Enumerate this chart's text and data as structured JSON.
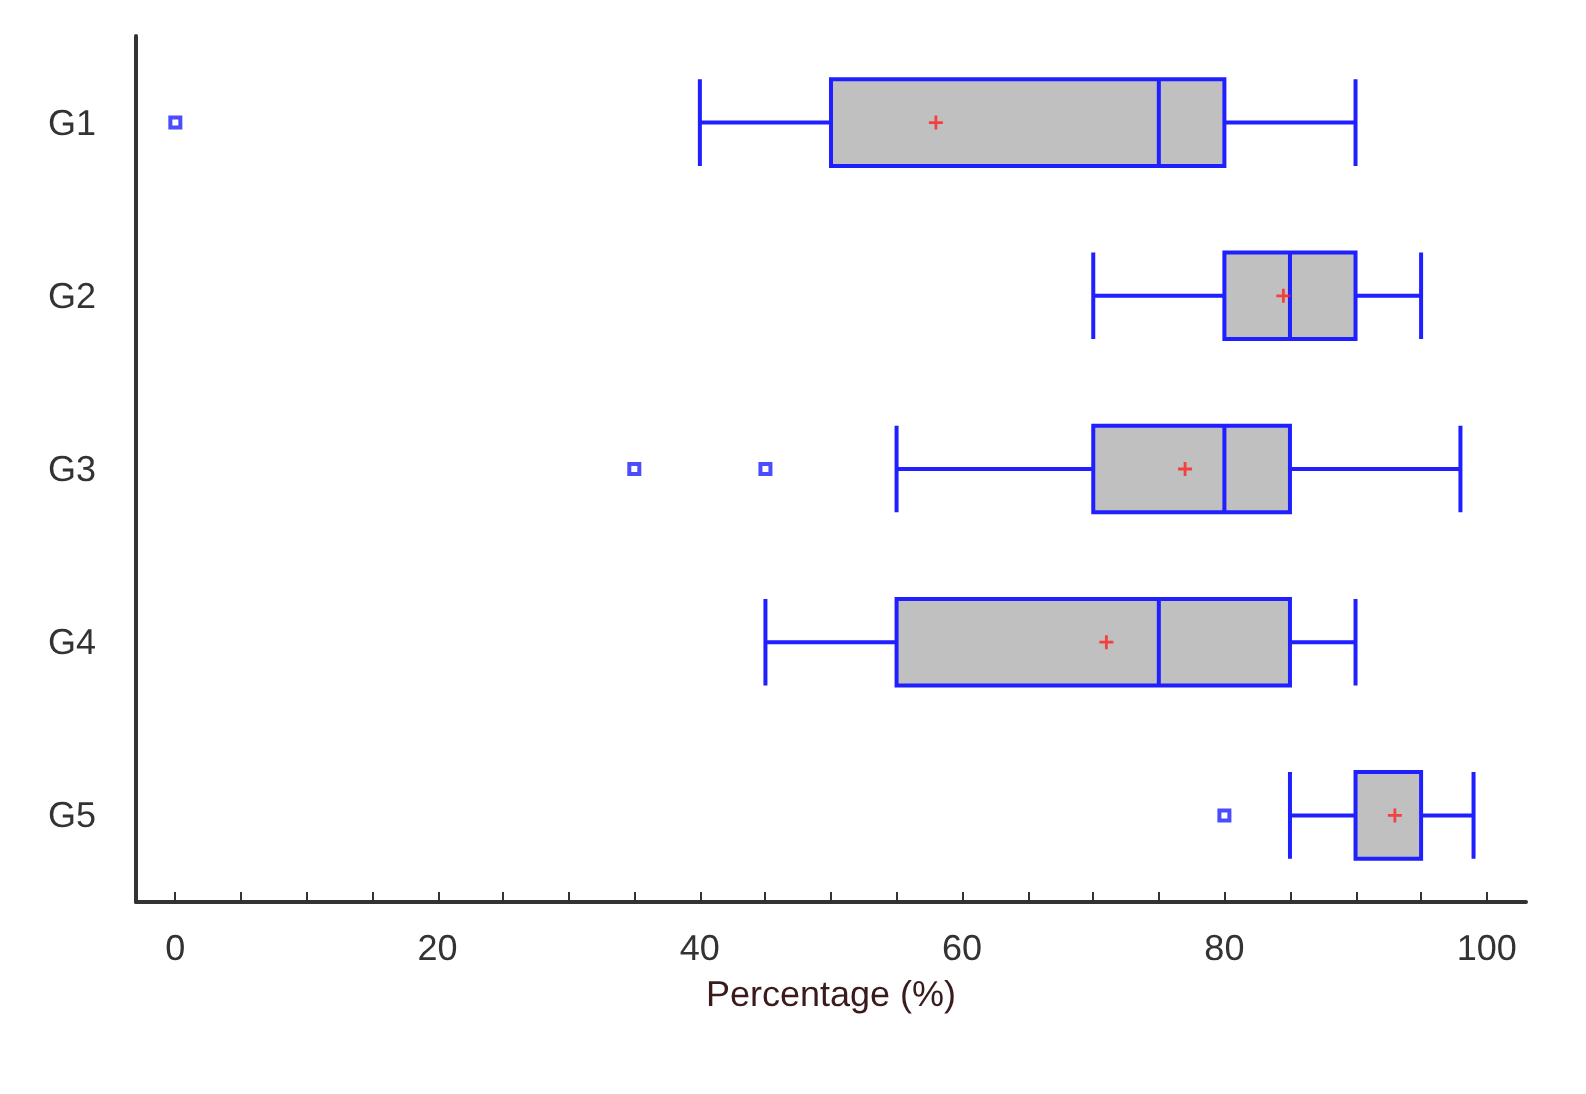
{
  "chart_data": {
    "type": "box",
    "orientation": "horizontal",
    "xlabel": "Percentage (%)",
    "categories": [
      "G1",
      "G2",
      "G3",
      "G4",
      "G5"
    ],
    "color": "#1f1fff",
    "boxes": [
      {
        "low": 40,
        "q1": 50,
        "median": 75,
        "q3": 80,
        "high": 90,
        "mean": 58,
        "outliers": [
          0
        ]
      },
      {
        "low": 70,
        "q1": 80,
        "median": 85,
        "q3": 90,
        "high": 95,
        "mean": 84.5
      },
      {
        "low": 55,
        "q1": 70,
        "median": 80,
        "q3": 85,
        "high": 98,
        "mean": 77,
        "outliers": [
          35,
          45
        ]
      },
      {
        "low": 45,
        "q1": 55,
        "median": 75,
        "q3": 85,
        "high": 90,
        "mean": 71
      },
      {
        "low": 85,
        "q1": 90,
        "median": 95,
        "q3": 95,
        "high": 99,
        "mean": 93,
        "outliers": [
          80
        ]
      }
    ],
    "xlim": [
      -3,
      103
    ],
    "xticks": [
      0,
      {
        "value": 5,
        "label": null
      },
      {
        "value": 10,
        "label": null
      },
      {
        "value": 15,
        "label": null
      },
      20,
      {
        "value": 25,
        "label": null
      },
      {
        "value": 30,
        "label": null
      },
      {
        "value": 35,
        "label": null
      },
      40,
      {
        "value": 45,
        "label": null
      },
      {
        "value": 50,
        "label": null
      },
      {
        "value": 55,
        "label": null
      },
      60,
      {
        "value": 65,
        "label": null
      },
      {
        "value": 70,
        "label": null
      },
      {
        "value": 75,
        "label": null
      },
      80,
      {
        "value": 85,
        "label": null
      },
      {
        "value": 90,
        "label": null
      },
      {
        "value": 95,
        "label": null
      },
      100
    ],
    "grid": false
  }
}
